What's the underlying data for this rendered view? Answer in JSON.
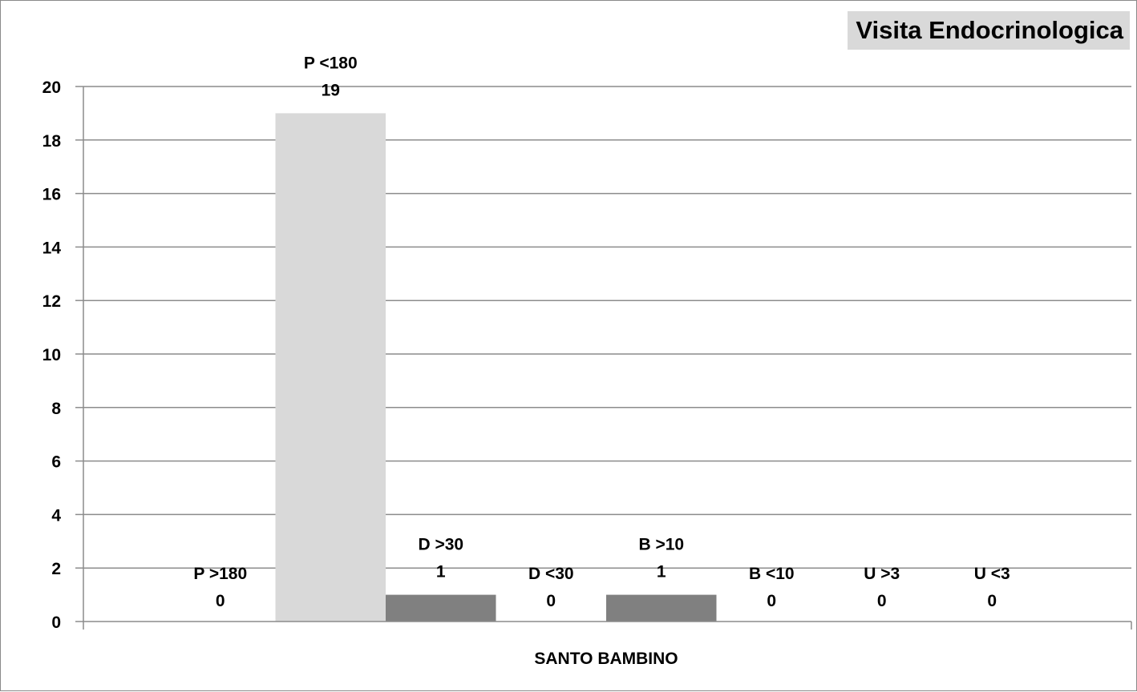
{
  "chart_data": {
    "type": "bar",
    "title": "Visita Endocrinologica",
    "xlabel": "SANTO BAMBINO",
    "ylabel": "",
    "ylim": [
      0,
      20
    ],
    "yticks": [
      "0",
      "2",
      "4",
      "6",
      "8",
      "10",
      "12",
      "14",
      "16",
      "18",
      "20"
    ],
    "grid": true,
    "legend": "none",
    "categories": [
      "P  >180",
      "P  <180",
      "D  >30",
      "D  <30",
      "B  >10",
      "B  <10",
      "U  >3",
      "U  <3"
    ],
    "values": [
      0,
      19,
      1,
      0,
      1,
      0,
      0,
      0
    ],
    "value_labels": [
      "0",
      "19",
      "1",
      "0",
      "1",
      "0",
      "0",
      "0"
    ],
    "colors": [
      "#d9d9d9",
      "#d9d9d9",
      "#808080",
      "#808080",
      "#808080",
      "#808080",
      "#808080",
      "#808080"
    ]
  }
}
